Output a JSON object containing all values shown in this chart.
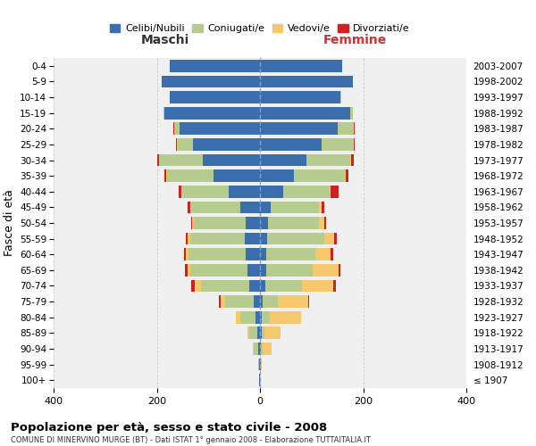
{
  "age_groups": [
    "100+",
    "95-99",
    "90-94",
    "85-89",
    "80-84",
    "75-79",
    "70-74",
    "65-69",
    "60-64",
    "55-59",
    "50-54",
    "45-49",
    "40-44",
    "35-39",
    "30-34",
    "25-29",
    "20-24",
    "15-19",
    "10-14",
    "5-9",
    "0-4"
  ],
  "birth_years": [
    "≤ 1907",
    "1908-1912",
    "1913-1917",
    "1918-1922",
    "1923-1927",
    "1928-1932",
    "1933-1937",
    "1938-1942",
    "1943-1947",
    "1948-1952",
    "1953-1957",
    "1958-1962",
    "1963-1967",
    "1968-1972",
    "1973-1977",
    "1978-1982",
    "1983-1987",
    "1988-1992",
    "1993-1997",
    "1998-2002",
    "2003-2007"
  ],
  "males_celibi": [
    1,
    2,
    4,
    6,
    8,
    12,
    20,
    25,
    28,
    30,
    28,
    38,
    60,
    90,
    110,
    130,
    155,
    185,
    175,
    190,
    175
  ],
  "males_coniugati": [
    1,
    2,
    8,
    14,
    30,
    55,
    95,
    110,
    110,
    105,
    100,
    95,
    90,
    90,
    85,
    30,
    12,
    2,
    0,
    0,
    0
  ],
  "males_vedovi": [
    0,
    0,
    2,
    4,
    8,
    10,
    12,
    6,
    5,
    5,
    3,
    2,
    2,
    1,
    1,
    1,
    0,
    0,
    0,
    0,
    0
  ],
  "males_divorziati": [
    0,
    0,
    0,
    1,
    1,
    3,
    6,
    5,
    5,
    4,
    3,
    5,
    5,
    4,
    3,
    2,
    1,
    0,
    0,
    0,
    0
  ],
  "females_nubili": [
    0,
    1,
    2,
    3,
    4,
    5,
    10,
    12,
    12,
    14,
    15,
    20,
    45,
    65,
    90,
    120,
    150,
    175,
    155,
    180,
    160
  ],
  "females_coniugate": [
    0,
    0,
    3,
    5,
    15,
    30,
    72,
    90,
    95,
    110,
    100,
    95,
    90,
    100,
    85,
    60,
    30,
    5,
    2,
    0,
    0
  ],
  "females_vedove": [
    1,
    3,
    18,
    32,
    60,
    58,
    60,
    50,
    30,
    20,
    10,
    5,
    2,
    1,
    2,
    1,
    2,
    0,
    0,
    0,
    0
  ],
  "females_divorziate": [
    0,
    0,
    0,
    0,
    1,
    3,
    5,
    4,
    5,
    5,
    4,
    5,
    15,
    5,
    5,
    2,
    1,
    0,
    0,
    0,
    0
  ],
  "colors_celibi": "#3a6eac",
  "colors_coniugati": "#b5cc8e",
  "colors_vedovi": "#f5c86e",
  "colors_divorziati": "#cc2222",
  "legend_labels": [
    "Celibi/Nubili",
    "Coniugati/e",
    "Vedovi/e",
    "Divorziati/e"
  ],
  "xlim": 400,
  "title": "Popolazione per età, sesso e stato civile - 2008",
  "subtitle": "COMUNE DI MINERVINO MURGE (BT) - Dati ISTAT 1° gennaio 2008 - Elaborazione TUTTAITALIA.IT",
  "label_maschi": "Maschi",
  "label_femmine": "Femmine",
  "ylabel_left": "Fasce di età",
  "bg_color": "#f0f0f0",
  "grid_color": "#cccccc",
  "fig_width": 6.0,
  "fig_height": 5.0,
  "dpi": 100
}
